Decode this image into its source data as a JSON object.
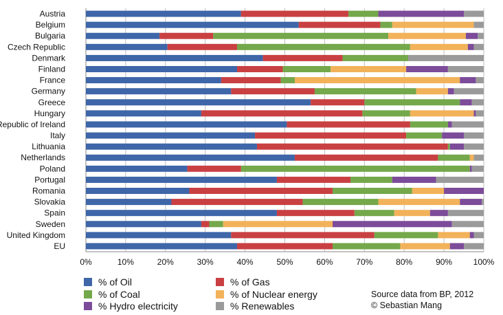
{
  "chart_data": {
    "type": "bar",
    "orientation": "horizontal",
    "stacked": true,
    "percent": true,
    "categories": [
      "Austria",
      "Belgium",
      "Bulgaria",
      "Czech Republic",
      "Denmark",
      "Finland",
      "France",
      "Germany",
      "Greece",
      "Hungary",
      "Republic of Ireland",
      "Italy",
      "Lithuania",
      "Netherlands",
      "Poland",
      "Portugal",
      "Romania",
      "Slovakia",
      "Spain",
      "Sweden",
      "United Kingdom",
      "EU"
    ],
    "series": [
      {
        "name": "% of Oil",
        "color": "#3e66a8",
        "values": [
          39,
          53.5,
          18.5,
          20.5,
          44.5,
          38,
          34,
          36.5,
          56.5,
          29,
          50.5,
          42.5,
          43,
          52.5,
          25.5,
          48,
          26,
          21.5,
          48,
          29,
          36.5,
          38
        ]
      },
      {
        "name": "% of Gas",
        "color": "#c94042",
        "values": [
          27,
          20.5,
          13.5,
          17.5,
          20,
          11.5,
          15,
          21,
          13.5,
          40.5,
          31,
          38,
          48,
          36,
          13.5,
          18.5,
          36,
          33,
          19.5,
          2,
          36,
          24
        ]
      },
      {
        "name": "% of Coal",
        "color": "#74a84b",
        "values": [
          7.5,
          3,
          44,
          43.5,
          16.5,
          12,
          3.5,
          25.5,
          24,
          12,
          9.5,
          9,
          0.5,
          8,
          57.5,
          10.5,
          20,
          19,
          10,
          3.5,
          16,
          17
        ]
      },
      {
        "name": "% of Nuclear energy",
        "color": "#f2b25a",
        "values": [
          0,
          20.5,
          19.5,
          14.5,
          0,
          19,
          41.5,
          8,
          0,
          16,
          0,
          0,
          0,
          1,
          0,
          0,
          8,
          20.5,
          9,
          27.5,
          8,
          12.5
        ]
      },
      {
        "name": "% Hydro electricity",
        "color": "#7c4b99",
        "values": [
          21.5,
          0,
          3,
          1.5,
          0,
          10.5,
          4,
          1.5,
          3,
          0.5,
          1,
          5.5,
          3.5,
          0,
          0.5,
          11,
          10,
          5.5,
          4.5,
          30,
          1,
          3.5
        ]
      },
      {
        "name": "% Renewables",
        "color": "#9a9a9a",
        "values": [
          5,
          2.5,
          1.5,
          2.5,
          19,
          9,
          2,
          7.5,
          3,
          2,
          8,
          5,
          5,
          2.5,
          3,
          12,
          0,
          0.5,
          9,
          8,
          2.5,
          5
        ]
      }
    ],
    "xlim": [
      0,
      100
    ],
    "xticks": [
      "0%",
      "10%",
      "20%",
      "30%",
      "40%",
      "50%",
      "60%",
      "70%",
      "80%",
      "90%",
      "100%"
    ],
    "grid": "vertical",
    "legend_position": "bottom",
    "title": "",
    "xlabel": "",
    "ylabel": ""
  },
  "source": {
    "line1": "Source data from BP, 2012",
    "line2": "© Sebastian Mang"
  }
}
